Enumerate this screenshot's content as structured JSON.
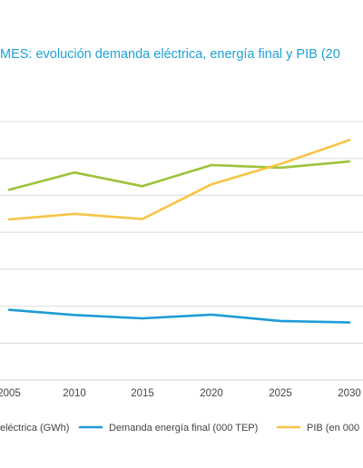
{
  "chart_data": {
    "type": "line",
    "title": "MES: evolución demanda eléctrica, energía final y PIB (20",
    "x": [
      "2005",
      "2010",
      "2015",
      "2020",
      "2025",
      "2030"
    ],
    "ylim": [
      0,
      7
    ],
    "grid": true,
    "legend_position": "bottom",
    "series": [
      {
        "name": "eléctrica (GWh)",
        "color": "#9dc33b",
        "values": [
          5.15,
          5.62,
          5.25,
          5.82,
          5.75,
          5.92
        ]
      },
      {
        "name": "Demanda energía final (000 TEP)",
        "color": "#1e9bd7",
        "values": [
          1.9,
          1.76,
          1.67,
          1.77,
          1.6,
          1.56
        ]
      },
      {
        "name": "PIB (en 000",
        "color": "#f6c545",
        "values": [
          4.35,
          4.5,
          4.36,
          5.3,
          5.85,
          6.5
        ]
      }
    ]
  }
}
